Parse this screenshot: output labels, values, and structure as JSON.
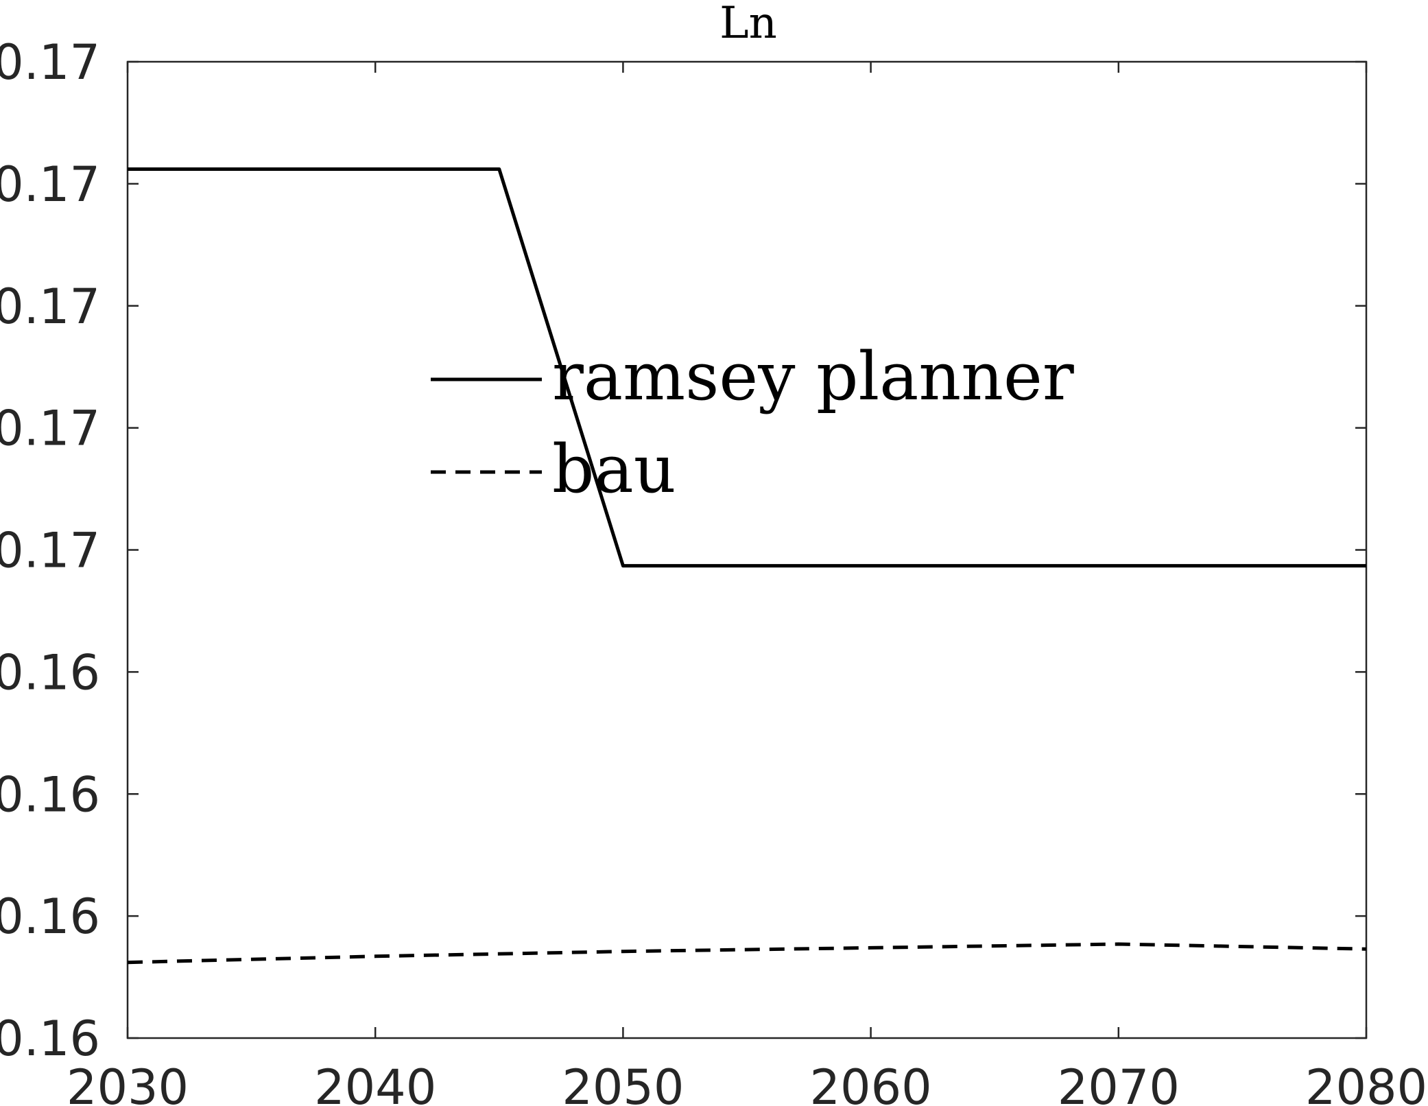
{
  "chart_data": {
    "type": "line",
    "title": "Ln",
    "xlabel": "",
    "ylabel": "",
    "xlim": [
      2030,
      2080
    ],
    "ylim": [
      0,
      8
    ],
    "x_ticks": [
      {
        "value": 2030,
        "label": "2030"
      },
      {
        "value": 2040,
        "label": "2040"
      },
      {
        "value": 2050,
        "label": "2050"
      },
      {
        "value": 2060,
        "label": "2060"
      },
      {
        "value": 2070,
        "label": "2070"
      },
      {
        "value": 2080,
        "label": "2080"
      }
    ],
    "y_ticks": [
      {
        "value": 0,
        "label": "0.16"
      },
      {
        "value": 1,
        "label": "0.16"
      },
      {
        "value": 2,
        "label": "0.16"
      },
      {
        "value": 3,
        "label": "0.16"
      },
      {
        "value": 4,
        "label": "0.17"
      },
      {
        "value": 5,
        "label": "0.17"
      },
      {
        "value": 6,
        "label": "0.17"
      },
      {
        "value": 7,
        "label": "0.17"
      },
      {
        "value": 8,
        "label": "0.17"
      }
    ],
    "series": [
      {
        "name": "ramsey planner",
        "style": "solid",
        "color": "#000000",
        "points": [
          [
            2030,
            7.12
          ],
          [
            2045,
            7.12
          ],
          [
            2050,
            3.87
          ],
          [
            2080,
            3.87
          ]
        ]
      },
      {
        "name": "bau",
        "style": "dashed",
        "color": "#000000",
        "points": [
          [
            2030,
            0.62
          ],
          [
            2040,
            0.67
          ],
          [
            2050,
            0.71
          ],
          [
            2060,
            0.74
          ],
          [
            2070,
            0.77
          ],
          [
            2080,
            0.73
          ]
        ]
      }
    ],
    "legend": {
      "position": "center",
      "box": false
    },
    "grid": false
  }
}
